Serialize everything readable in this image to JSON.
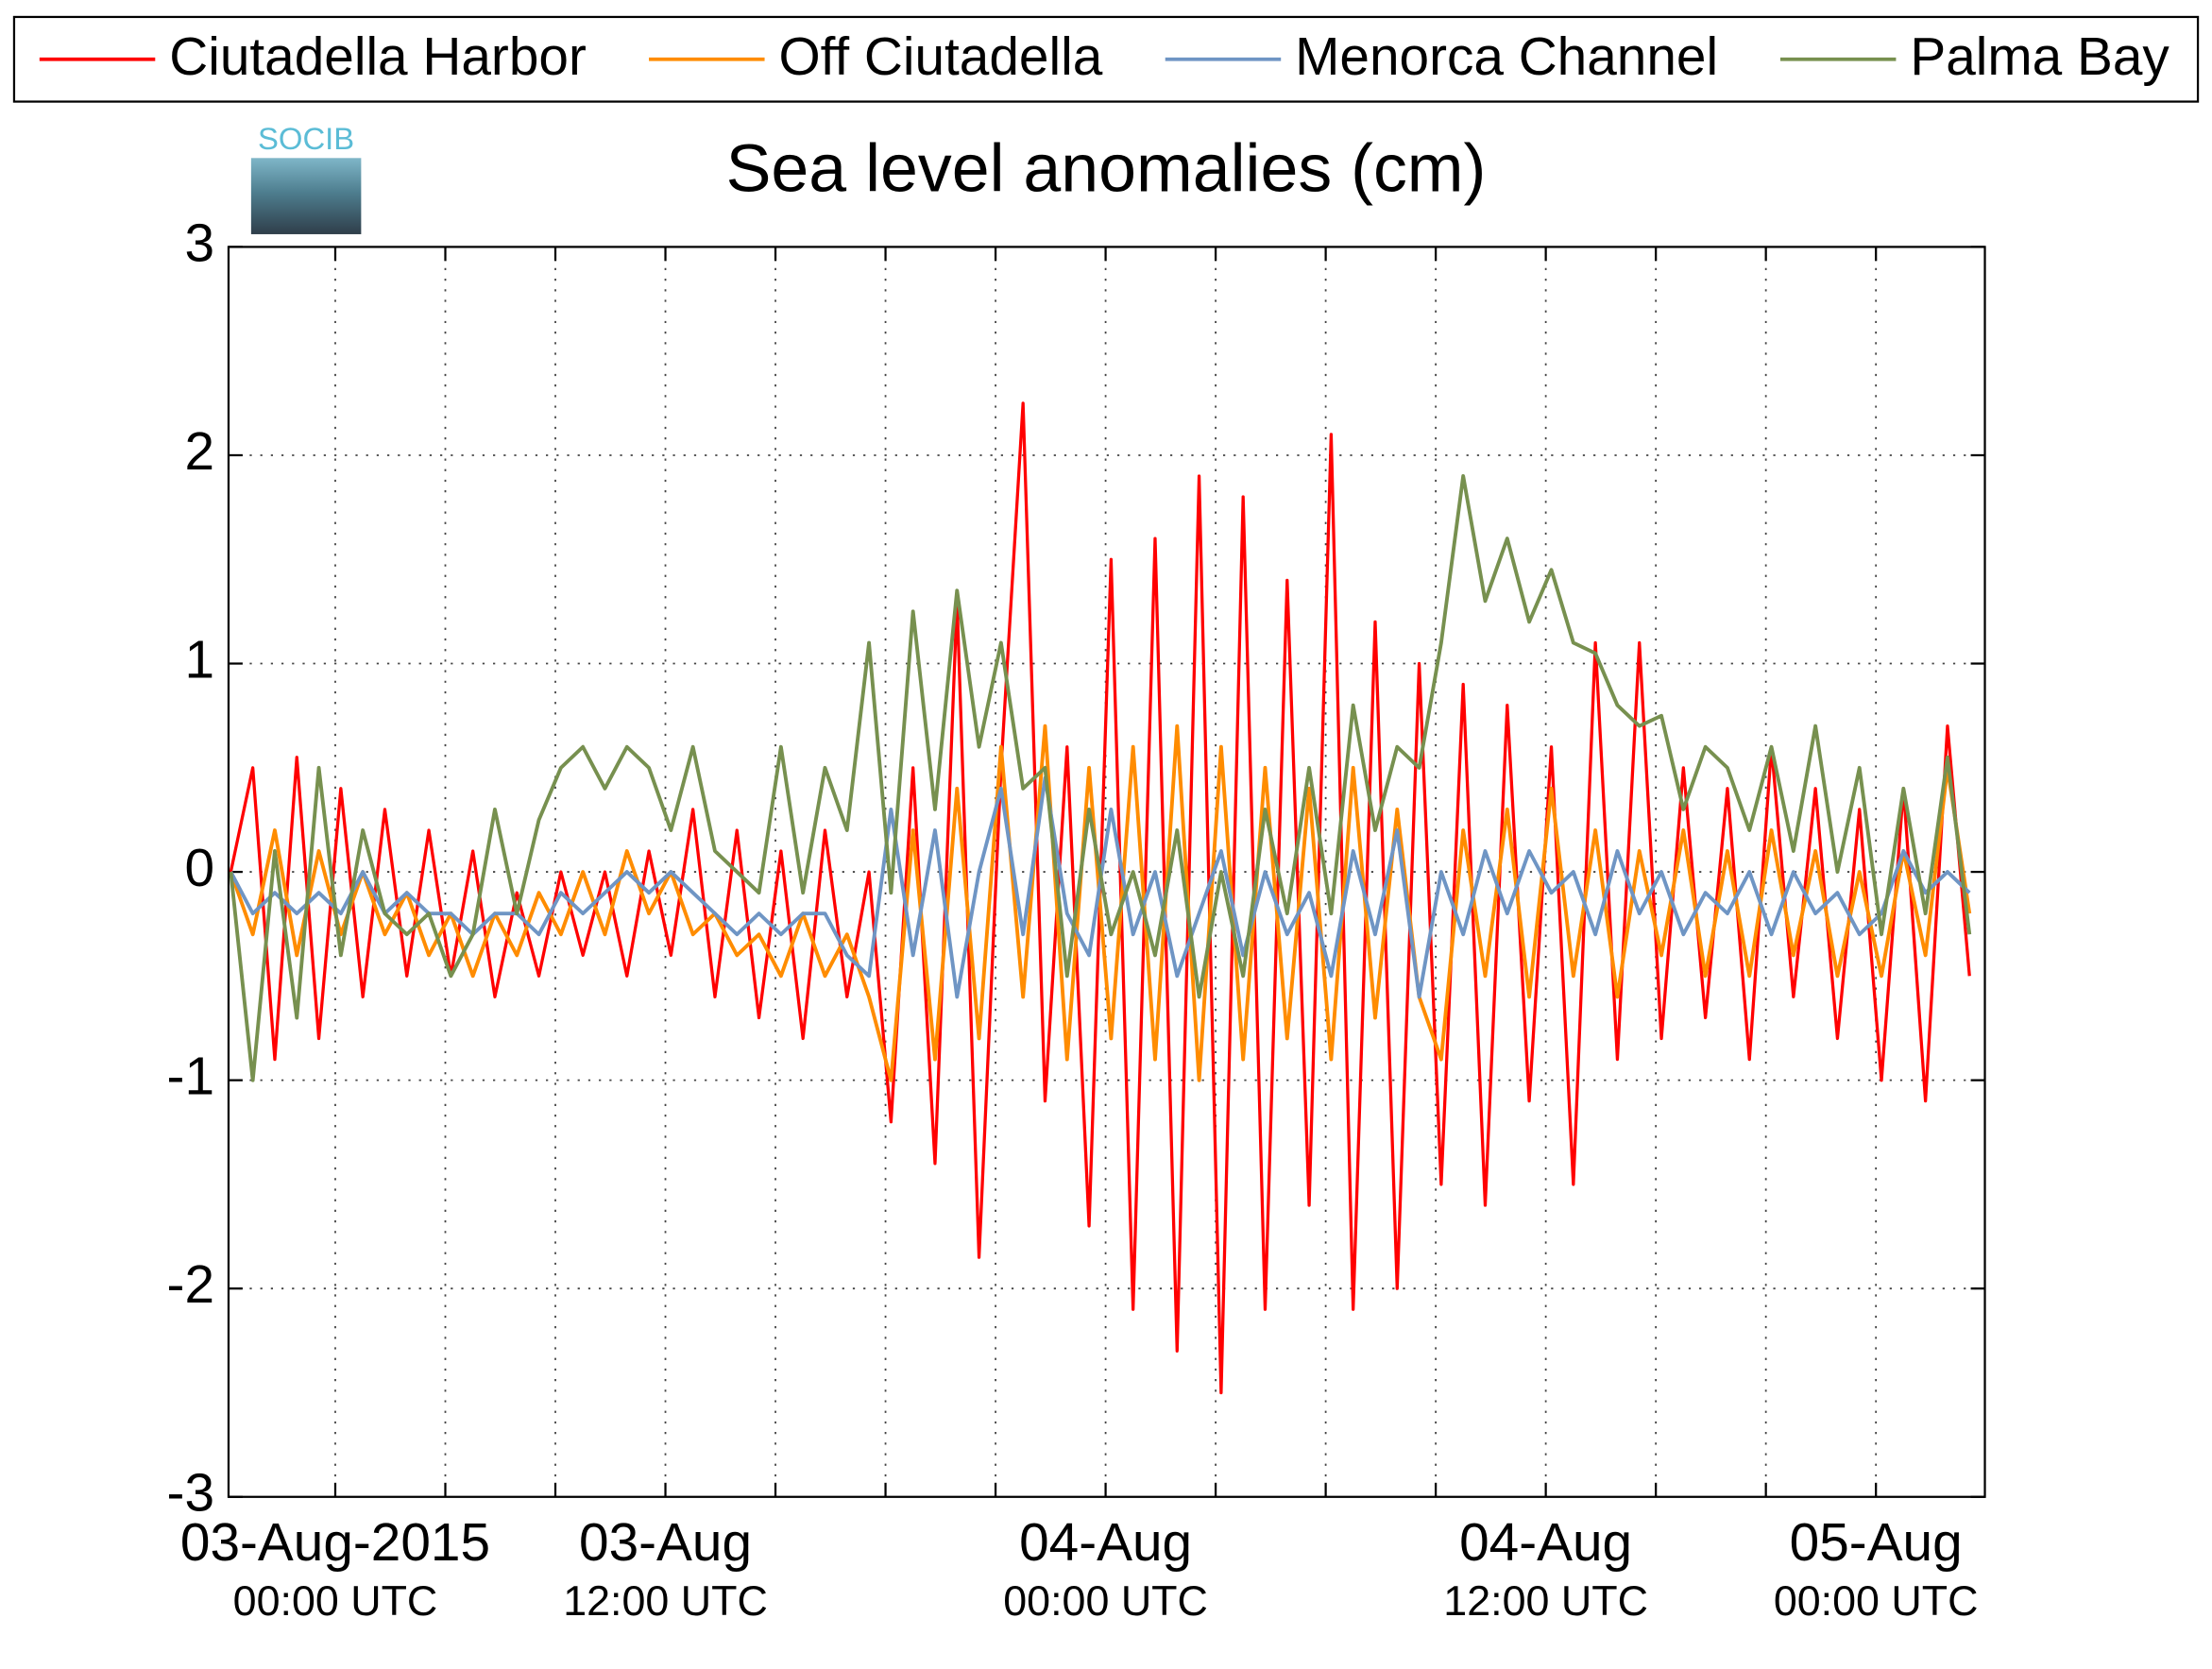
{
  "chart_data": {
    "type": "line",
    "title": "Sea level anomalies (cm)",
    "logo": "SOCIB",
    "legend": "top",
    "grid": true,
    "x": [
      -0.95,
      -0.75,
      -0.55,
      -0.35,
      -0.15,
      0.05,
      0.25,
      0.45,
      0.65,
      0.85,
      1.05,
      1.25,
      1.45,
      1.65,
      1.85,
      2.05,
      2.25,
      2.45,
      2.65,
      2.85,
      3.05,
      3.25,
      3.45,
      3.65,
      3.85,
      4.05,
      4.25,
      4.45,
      4.65,
      4.85,
      5.05,
      5.25,
      5.45,
      5.65,
      5.85,
      6.05,
      6.25,
      6.45,
      6.65,
      6.85,
      7.05,
      7.25,
      7.45,
      7.65,
      7.85,
      8.05,
      8.25,
      8.45,
      8.65,
      8.85,
      9.05,
      9.25,
      9.45,
      9.65,
      9.85,
      10.05,
      10.25,
      10.45,
      10.65,
      10.85,
      11.05,
      11.25,
      11.45,
      11.65,
      11.85,
      12.05,
      12.25,
      12.45,
      12.65,
      12.85,
      13.05,
      13.25,
      13.45,
      13.65,
      13.85,
      14.05,
      14.25,
      14.45,
      14.65,
      14.85
    ],
    "xlim": [
      -0.97,
      14.99
    ],
    "xticks": [
      {
        "value": 0,
        "label": "03-Aug-2015",
        "sublabel": "00:00 UTC"
      },
      1,
      2,
      {
        "value": 3,
        "label": "03-Aug",
        "sublabel": "12:00 UTC"
      },
      4,
      5,
      6,
      {
        "value": 7,
        "label": "04-Aug",
        "sublabel": "00:00 UTC"
      },
      8,
      9,
      10,
      {
        "value": 11,
        "label": "04-Aug",
        "sublabel": "12:00 UTC"
      },
      12,
      13,
      {
        "value": 14,
        "label": "05-Aug",
        "sublabel": "00:00 UTC"
      }
    ],
    "ylim": [
      -3,
      3
    ],
    "yticks": [
      -3,
      -2,
      -1,
      0,
      1,
      2,
      3
    ],
    "series": [
      {
        "name": "Ciutadella Harbor",
        "color": "#ff0000",
        "values": [
          0,
          0.5,
          -0.9,
          0.55,
          -0.8,
          0.4,
          -0.6,
          0.3,
          -0.5,
          0.2,
          -0.5,
          0.1,
          -0.6,
          -0.1,
          -0.5,
          0,
          -0.4,
          0,
          -0.5,
          0.1,
          -0.4,
          0.3,
          -0.6,
          0.2,
          -0.7,
          0.1,
          -0.8,
          0.2,
          -0.6,
          0,
          -1.2,
          0.5,
          -1.4,
          1.3,
          -1.85,
          0.5,
          2.25,
          -1.1,
          0.6,
          -1.7,
          1.5,
          -2.1,
          1.6,
          -2.3,
          1.9,
          -2.5,
          1.8,
          -2.1,
          1.4,
          -1.6,
          2.1,
          -2.1,
          1.2,
          -2,
          1,
          -1.5,
          0.9,
          -1.6,
          0.8,
          -1.1,
          0.6,
          -1.5,
          1.1,
          -0.9,
          1.1,
          -0.8,
          0.5,
          -0.7,
          0.4,
          -0.9,
          0.6,
          -0.6,
          0.4,
          -0.8,
          0.3,
          -1,
          0.4,
          -1.1,
          0.7,
          -0.5
        ]
      },
      {
        "name": "Off Ciutadella",
        "color": "#ff8c00",
        "values": [
          0,
          -0.3,
          0.2,
          -0.4,
          0.1,
          -0.3,
          0,
          -0.3,
          -0.1,
          -0.4,
          -0.2,
          -0.5,
          -0.2,
          -0.4,
          -0.1,
          -0.3,
          0,
          -0.3,
          0.1,
          -0.2,
          0,
          -0.3,
          -0.2,
          -0.4,
          -0.3,
          -0.5,
          -0.2,
          -0.5,
          -0.3,
          -0.6,
          -1,
          0.2,
          -0.9,
          0.4,
          -0.8,
          0.6,
          -0.6,
          0.7,
          -0.9,
          0.5,
          -0.8,
          0.6,
          -0.9,
          0.7,
          -1,
          0.6,
          -0.9,
          0.5,
          -0.8,
          0.4,
          -0.9,
          0.5,
          -0.7,
          0.3,
          -0.6,
          -0.9,
          0.2,
          -0.5,
          0.3,
          -0.6,
          0.4,
          -0.5,
          0.2,
          -0.6,
          0.1,
          -0.4,
          0.2,
          -0.5,
          0.1,
          -0.5,
          0.2,
          -0.4,
          0.1,
          -0.5,
          0,
          -0.5,
          0.1,
          -0.4,
          0.5,
          -0.2
        ]
      },
      {
        "name": "Menorca Channel",
        "color": "#6f95c4",
        "values": [
          0,
          -0.2,
          -0.1,
          -0.2,
          -0.1,
          -0.2,
          0,
          -0.2,
          -0.1,
          -0.2,
          -0.2,
          -0.3,
          -0.2,
          -0.2,
          -0.3,
          -0.1,
          -0.2,
          -0.1,
          0,
          -0.1,
          0,
          -0.1,
          -0.2,
          -0.3,
          -0.2,
          -0.3,
          -0.2,
          -0.2,
          -0.4,
          -0.5,
          0.3,
          -0.4,
          0.2,
          -0.6,
          0,
          0.4,
          -0.3,
          0.45,
          -0.2,
          -0.4,
          0.3,
          -0.3,
          0,
          -0.5,
          -0.2,
          0.1,
          -0.4,
          0,
          -0.3,
          -0.1,
          -0.5,
          0.1,
          -0.3,
          0.2,
          -0.6,
          0,
          -0.3,
          0.1,
          -0.2,
          0.1,
          -0.1,
          0,
          -0.3,
          0.1,
          -0.2,
          0,
          -0.3,
          -0.1,
          -0.2,
          0,
          -0.3,
          0,
          -0.2,
          -0.1,
          -0.3,
          -0.2,
          0.1,
          -0.1,
          0,
          -0.1
        ]
      },
      {
        "name": "Palma Bay",
        "color": "#77904f",
        "values": [
          0,
          -1,
          0.1,
          -0.7,
          0.5,
          -0.4,
          0.2,
          -0.2,
          -0.3,
          -0.2,
          -0.5,
          -0.3,
          0.3,
          -0.2,
          0.25,
          0.5,
          0.6,
          0.4,
          0.6,
          0.5,
          0.2,
          0.6,
          0.1,
          0,
          -0.1,
          0.6,
          -0.1,
          0.5,
          0.2,
          1.1,
          -0.1,
          1.25,
          0.3,
          1.35,
          0.6,
          1.1,
          0.4,
          0.5,
          -0.5,
          0.3,
          -0.3,
          0,
          -0.4,
          0.2,
          -0.6,
          0,
          -0.5,
          0.3,
          -0.2,
          0.5,
          -0.2,
          0.8,
          0.2,
          0.6,
          0.5,
          1.1,
          1.9,
          1.3,
          1.6,
          1.2,
          1.45,
          1.1,
          1.05,
          0.8,
          0.7,
          0.75,
          0.3,
          0.6,
          0.5,
          0.2,
          0.6,
          0.1,
          0.7,
          0,
          0.5,
          -0.3,
          0.4,
          -0.2,
          0.55,
          -0.3
        ]
      }
    ]
  }
}
